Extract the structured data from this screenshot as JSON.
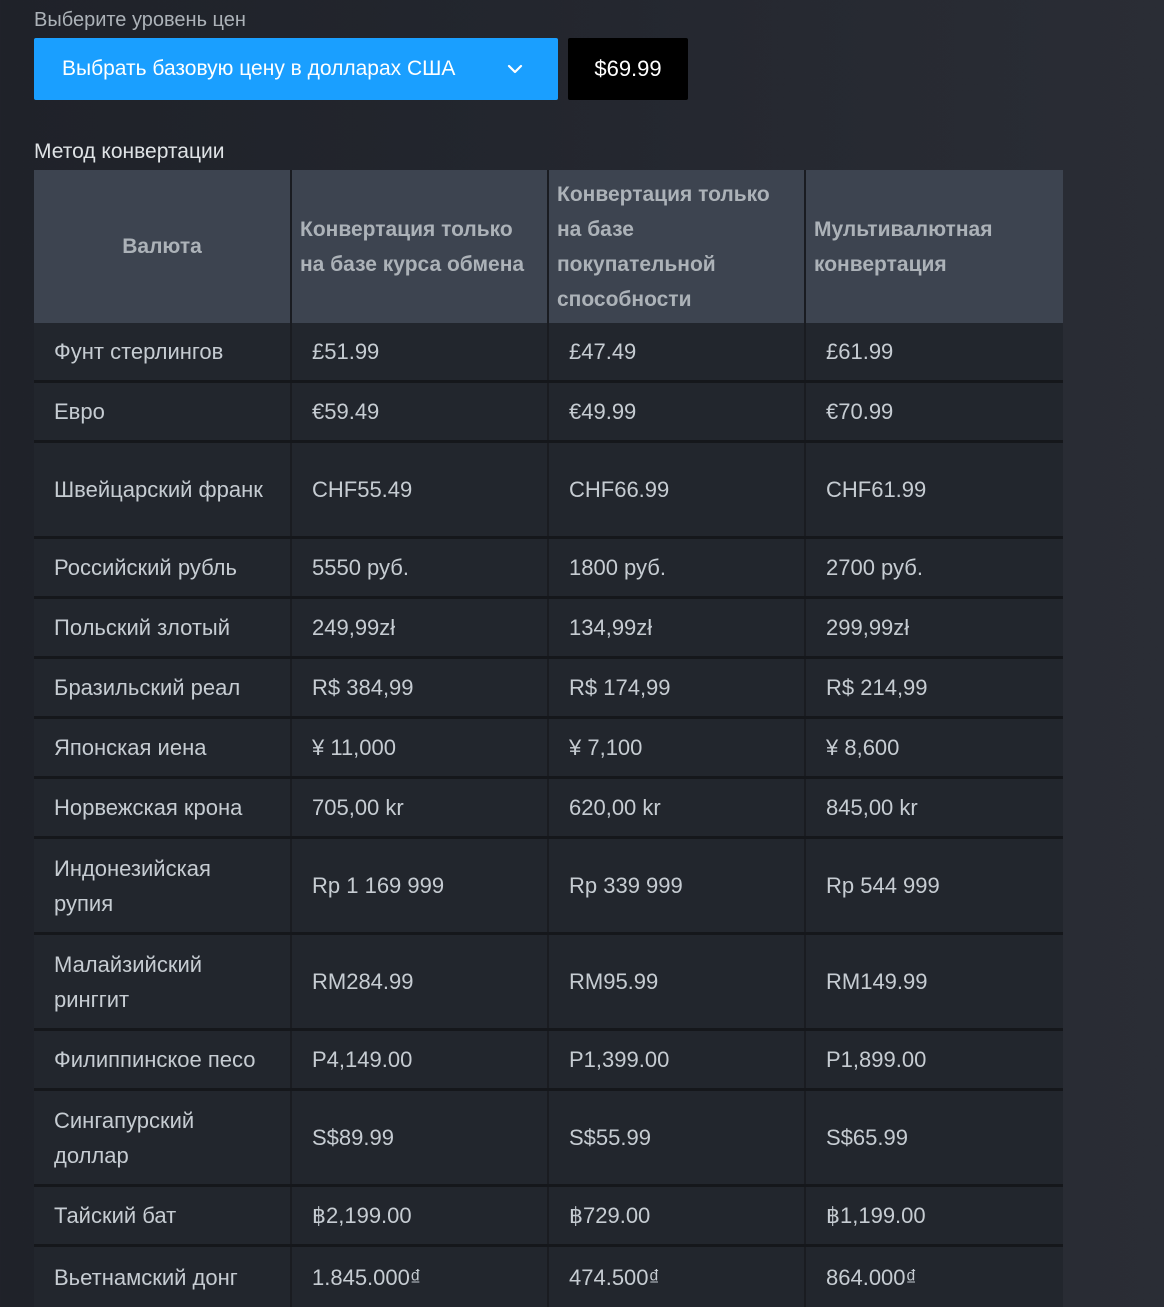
{
  "price_level": {
    "label": "Выберите уровень цен",
    "dropdown_label": "Выбрать базовую цену в долларах США",
    "price_value": "$69.99"
  },
  "conversion": {
    "label": "Метод конвертации",
    "headers": {
      "currency": "Валюта",
      "exchange_rate": "Конвертация только на базе курса обмена",
      "purchasing_power": "Конвертация только на базе покупательной способности",
      "multi_currency": "Мультивалютная конвертация"
    },
    "rows": [
      {
        "currency": "Фунт стерлингов",
        "exchange_rate": "£51.99",
        "purchasing_power": "£47.49",
        "multi_currency": "£61.99"
      },
      {
        "currency": "Евро",
        "exchange_rate": "€59.49",
        "purchasing_power": "€49.99",
        "multi_currency": "€70.99"
      },
      {
        "currency": "Швейцарский франк",
        "exchange_rate": "CHF55.49",
        "purchasing_power": "CHF66.99",
        "multi_currency": "CHF61.99"
      },
      {
        "currency": "Российский рубль",
        "exchange_rate": "5550 руб.",
        "purchasing_power": "1800 руб.",
        "multi_currency": "2700 руб."
      },
      {
        "currency": "Польский злотый",
        "exchange_rate": "249,99zł",
        "purchasing_power": "134,99zł",
        "multi_currency": "299,99zł"
      },
      {
        "currency": "Бразильский реал",
        "exchange_rate": "R$ 384,99",
        "purchasing_power": "R$ 174,99",
        "multi_currency": "R$ 214,99"
      },
      {
        "currency": "Японская иена",
        "exchange_rate": "¥ 11,000",
        "purchasing_power": "¥ 7,100",
        "multi_currency": "¥ 8,600"
      },
      {
        "currency": "Норвежская крона",
        "exchange_rate": "705,00 kr",
        "purchasing_power": "620,00 kr",
        "multi_currency": "845,00 kr"
      },
      {
        "currency": "Индонезийская рупия",
        "exchange_rate": "Rp 1 169 999",
        "purchasing_power": "Rp 339 999",
        "multi_currency": "Rp 544 999"
      },
      {
        "currency": "Малайзийский ринггит",
        "exchange_rate": "RM284.99",
        "purchasing_power": "RM95.99",
        "multi_currency": "RM149.99"
      },
      {
        "currency": "Филиппинское песо",
        "exchange_rate": "P4,149.00",
        "purchasing_power": "P1,399.00",
        "multi_currency": "P1,899.00"
      },
      {
        "currency": "Сингапурский доллар",
        "exchange_rate": "S$89.99",
        "purchasing_power": "S$55.99",
        "multi_currency": "S$65.99"
      },
      {
        "currency": "Тайский бат",
        "exchange_rate": "฿2,199.00",
        "purchasing_power": "฿729.00",
        "multi_currency": "฿1,199.00"
      },
      {
        "currency": "Вьетнамский донг",
        "exchange_rate": "1.845.000₫",
        "purchasing_power": "474.500₫",
        "multi_currency": "864.000₫"
      }
    ]
  },
  "icons": {
    "dropdown": "chevron-down-icon"
  },
  "colors": {
    "accent": "#1a9fff",
    "price_box": "#000000",
    "header_bg": "#3d4450",
    "row_bg": "#22262d"
  }
}
